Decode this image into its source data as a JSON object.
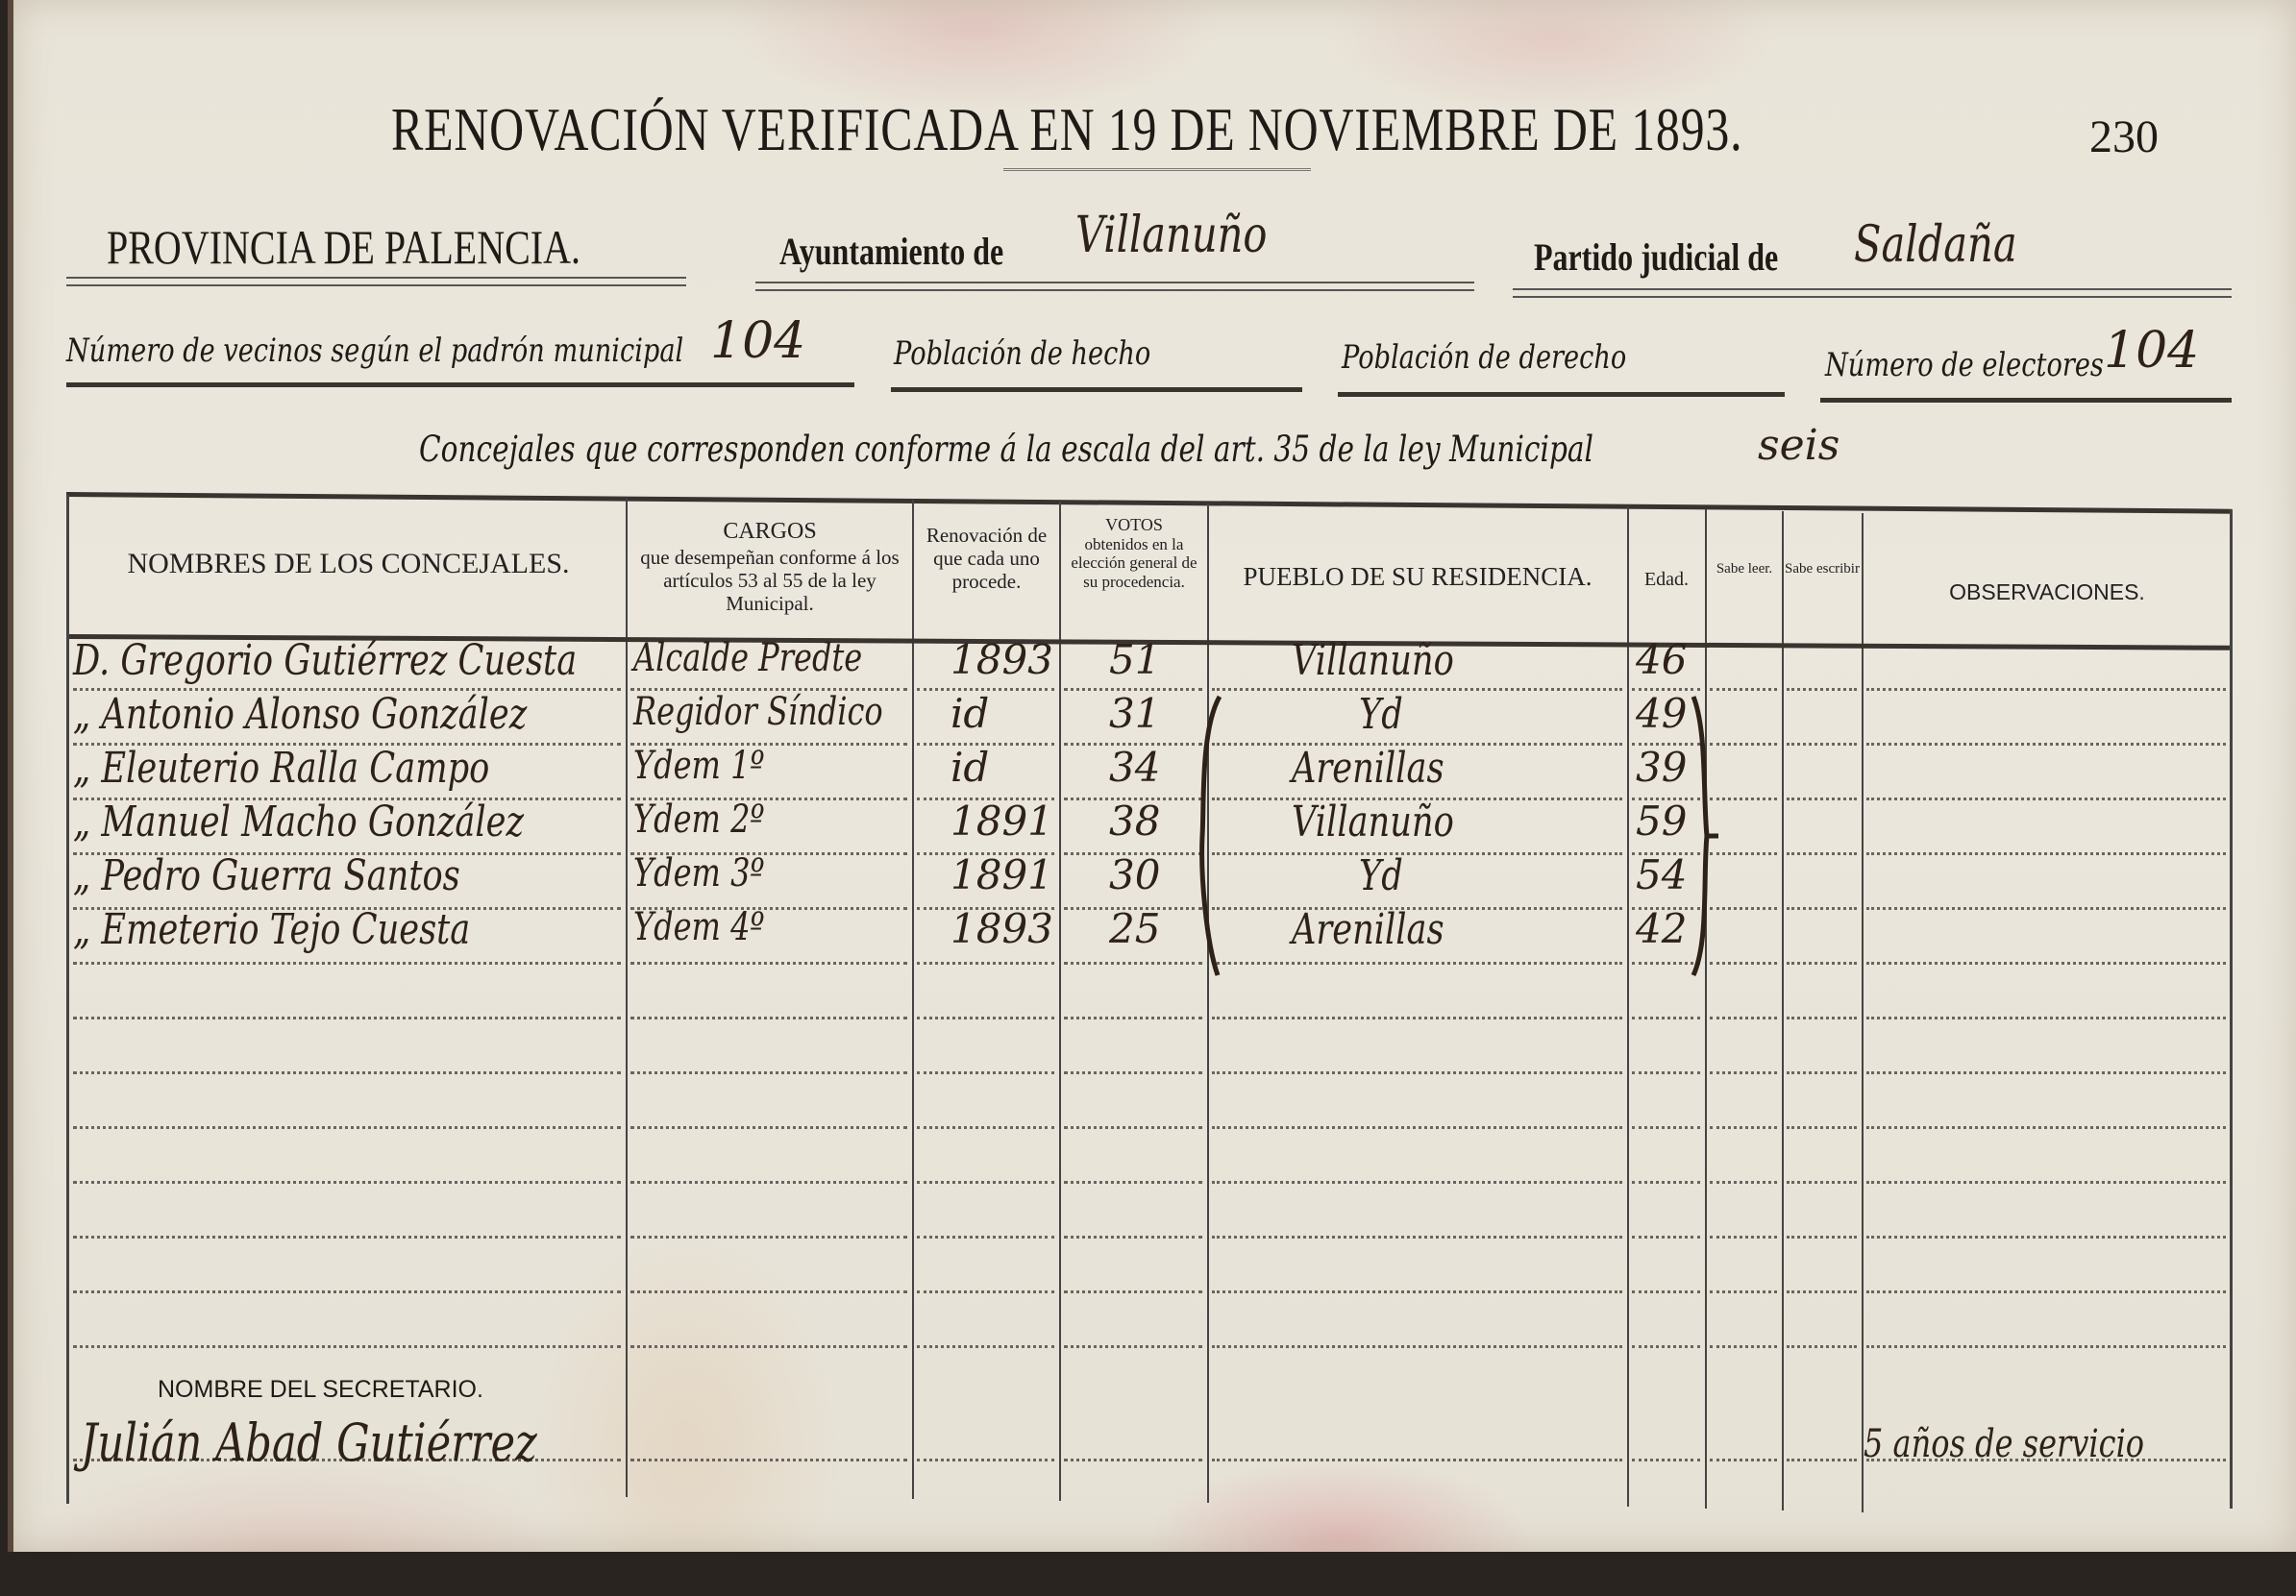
{
  "document": {
    "title": "RENOVACIÓN VERIFICADA EN 19 DE NOVIEMBRE DE 1893.",
    "page_number": "230",
    "province": "PROVINCIA DE PALENCIA.",
    "ayuntamiento_label": "Ayuntamiento de",
    "ayuntamiento_value": "Villanuño",
    "partido_label": "Partido judicial de",
    "partido_value": "Saldaña",
    "vecinos_label": "Número de vecinos según el padrón municipal",
    "vecinos_value": "104",
    "poblacion_hecho_label": "Población de hecho",
    "poblacion_derecho_label": "Población de derecho",
    "electores_label": "Número de electores",
    "electores_value": "104",
    "concejales_label": "Concejales que corresponden conforme á la escala del art. 35 de la ley Municipal",
    "concejales_value": "seis"
  },
  "table": {
    "headers": {
      "nombres": "NOMBRES DE LOS CONCEJALES.",
      "cargos_title": "CARGOS",
      "cargos_sub": "que desempeñan conforme á los artículos 53 al 55 de la ley Municipal.",
      "renovacion": "Renovación de que cada uno procede.",
      "votos_title": "VOTOS",
      "votos_sub": "obtenidos en la elección general de su procedencia.",
      "pueblo": "PUEBLO DE SU RESIDENCIA.",
      "edad": "Edad.",
      "sabe_leer": "Sabe leer.",
      "sabe_escribir": "Sabe escribir",
      "observaciones": "OBSERVACIONES."
    },
    "rows": [
      {
        "nombre": "D. Gregorio Gutiérrez Cuesta",
        "cargo": "Alcalde Predte",
        "renovacion": "1893",
        "votos": "51",
        "pueblo": "Villanuño",
        "edad": "46"
      },
      {
        "nombre": "„ Antonio Alonso González",
        "cargo": "Regidor Síndico",
        "renovacion": "id",
        "votos": "31",
        "pueblo": "Yd",
        "edad": "49"
      },
      {
        "nombre": "„ Eleuterio Ralla Campo",
        "cargo": "Ydem 1º",
        "renovacion": "id",
        "votos": "34",
        "pueblo": "Arenillas",
        "edad": "39"
      },
      {
        "nombre": "„ Manuel Macho González",
        "cargo": "Ydem 2º",
        "renovacion": "1891",
        "votos": "38",
        "pueblo": "Villanuño",
        "edad": "59"
      },
      {
        "nombre": "„ Pedro Guerra Santos",
        "cargo": "Ydem 3º",
        "renovacion": "1891",
        "votos": "30",
        "pueblo": "Yd",
        "edad": "54"
      },
      {
        "nombre": "„ Emeterio Tejo Cuesta",
        "cargo": "Ydem 4º",
        "renovacion": "1893",
        "votos": "25",
        "pueblo": "Arenillas",
        "edad": "42"
      }
    ]
  },
  "footer": {
    "secretario_label": "NOMBRE DEL SECRETARIO.",
    "secretario_value": "Julián Abad Gutiérrez",
    "observacion": "5 años de servicio"
  }
}
